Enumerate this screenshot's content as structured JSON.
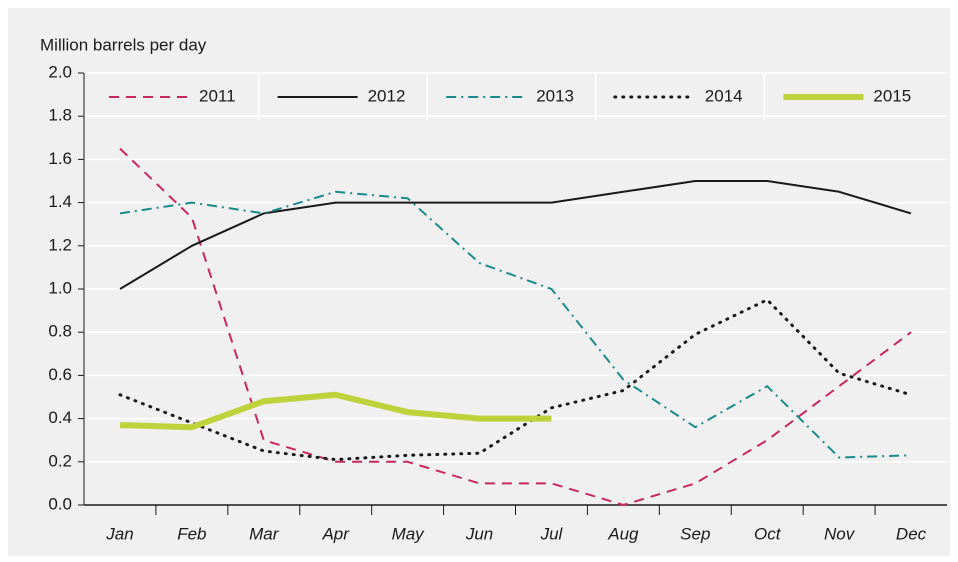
{
  "chart_data": {
    "type": "line",
    "y_axis_label": "Million barrels per day",
    "categories": [
      "Jan",
      "Feb",
      "Mar",
      "Apr",
      "May",
      "Jun",
      "Jul",
      "Aug",
      "Sep",
      "Oct",
      "Nov",
      "Dec"
    ],
    "ylim": [
      0,
      2
    ],
    "yticks": [
      {
        "value": 0,
        "label": "0.0"
      },
      0.2,
      0.4,
      0.6,
      0.8,
      {
        "value": 1,
        "label": "1.0"
      },
      1.2,
      1.4,
      1.6,
      1.8,
      {
        "value": 2,
        "label": "2.0"
      }
    ],
    "grid": true,
    "legend": "top",
    "series": [
      {
        "name": "2011",
        "color": "#c8285c",
        "dash": "dashed",
        "width": 2,
        "values": [
          1.65,
          1.33,
          0.3,
          0.2,
          0.2,
          0.1,
          0.1,
          0.0,
          0.1,
          0.3,
          0.55,
          0.8
        ]
      },
      {
        "name": "2012",
        "color": "#1a1a1a",
        "dash": "solid",
        "width": 2,
        "values": [
          1.0,
          1.2,
          1.35,
          1.4,
          1.4,
          1.4,
          1.4,
          1.45,
          1.5,
          1.5,
          1.45,
          1.35
        ]
      },
      {
        "name": "2013",
        "color": "#1b8a8c",
        "dash": "dashdot",
        "width": 2,
        "values": [
          1.35,
          1.4,
          1.35,
          1.45,
          1.42,
          1.12,
          1.0,
          0.58,
          0.36,
          0.55,
          0.22,
          0.23
        ]
      },
      {
        "name": "2014",
        "color": "#1a1a1a",
        "dash": "dotted",
        "width": 3,
        "values": [
          0.51,
          0.38,
          0.25,
          0.21,
          0.23,
          0.24,
          0.45,
          0.53,
          0.79,
          0.95,
          0.61,
          0.51
        ]
      },
      {
        "name": "2015",
        "color": "#bdd23b",
        "dash": "solid",
        "width": 6,
        "values": [
          0.37,
          0.36,
          0.48,
          0.51,
          0.43,
          0.4,
          0.4,
          null,
          null,
          null,
          null,
          null
        ]
      }
    ]
  }
}
